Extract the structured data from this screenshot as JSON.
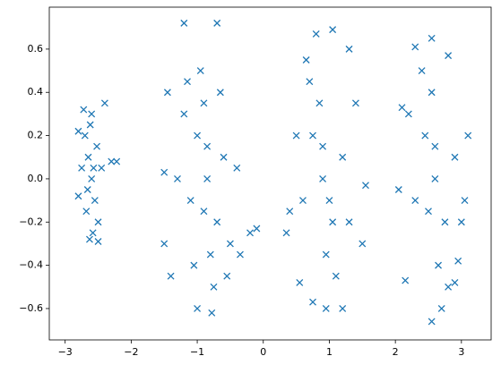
{
  "chart_data": {
    "type": "scatter",
    "color": "#1f77b4",
    "marker": "x",
    "xlim": [
      -3.24,
      3.45
    ],
    "ylim": [
      -0.745,
      0.794
    ],
    "xticks": [
      {
        "value": -3,
        "label": "−3"
      },
      {
        "value": -2,
        "label": "−2"
      },
      {
        "value": -1,
        "label": "−1"
      },
      0,
      1,
      2,
      3
    ],
    "yticks": [
      {
        "value": -0.6,
        "label": "−0.6"
      },
      {
        "value": -0.4,
        "label": "−0.4"
      },
      {
        "value": -0.2,
        "label": "−0.2"
      },
      {
        "value": 0,
        "label": "0.0"
      },
      0.2,
      0.4,
      0.6
    ],
    "x": [
      -2.6,
      -2.65,
      -2.55,
      -2.7,
      -2.5,
      -2.62,
      -2.58,
      -2.75,
      -2.45,
      -2.68,
      -2.52,
      -2.6,
      -2.63,
      -2.8,
      -2.3,
      -2.4,
      -2.8,
      -2.22,
      -2.5,
      -2.72,
      -2.57,
      -2.66,
      -0.85,
      -1.0,
      -0.7,
      -0.9,
      -0.8,
      -1.1,
      -0.6,
      -1.2,
      -0.5,
      -0.95,
      -0.75,
      -1.3,
      -0.4,
      -1.05,
      -0.65,
      -1.2,
      -0.7,
      -0.78,
      -1.0,
      -1.45,
      -1.5,
      -1.4,
      -0.2,
      -0.1,
      -0.35,
      -1.5,
      -0.85,
      -0.9,
      -1.15,
      -0.55,
      0.9,
      0.75,
      1.05,
      0.85,
      0.95,
      0.6,
      1.2,
      0.7,
      1.1,
      0.5,
      1.3,
      0.8,
      1.05,
      1.3,
      0.95,
      1.2,
      0.75,
      0.4,
      0.35,
      1.4,
      1.5,
      1.55,
      0.55,
      0.65,
      0.9,
      1.0,
      2.6,
      2.45,
      2.75,
      2.55,
      2.65,
      2.3,
      2.9,
      2.4,
      2.8,
      2.2,
      3.0,
      2.3,
      2.55,
      2.8,
      2.55,
      2.7,
      2.9,
      2.05,
      2.15,
      2.1,
      3.1,
      3.05,
      2.95,
      2.6,
      2.5
    ],
    "y": [
      0.0,
      0.1,
      -0.1,
      0.2,
      -0.2,
      0.25,
      -0.25,
      0.05,
      0.05,
      -0.15,
      0.15,
      0.3,
      -0.28,
      0.22,
      0.08,
      0.35,
      -0.08,
      0.08,
      -0.29,
      0.32,
      0.05,
      -0.05,
      0.0,
      0.2,
      -0.2,
      0.35,
      -0.35,
      -0.1,
      0.1,
      0.3,
      -0.3,
      0.5,
      -0.5,
      0.0,
      0.05,
      -0.4,
      0.4,
      0.72,
      0.72,
      -0.62,
      -0.6,
      0.4,
      -0.3,
      -0.45,
      -0.25,
      -0.23,
      -0.35,
      0.03,
      0.15,
      -0.15,
      0.45,
      -0.45,
      0.0,
      0.2,
      -0.2,
      0.35,
      -0.35,
      -0.1,
      0.1,
      0.45,
      -0.45,
      0.2,
      -0.2,
      0.67,
      0.69,
      0.6,
      -0.6,
      -0.6,
      -0.57,
      -0.15,
      -0.25,
      0.35,
      -0.3,
      -0.03,
      -0.48,
      0.55,
      0.15,
      -0.1,
      0.0,
      0.2,
      -0.2,
      0.4,
      -0.4,
      -0.1,
      0.1,
      0.5,
      -0.5,
      0.3,
      -0.2,
      0.61,
      0.65,
      0.57,
      -0.66,
      -0.6,
      -0.48,
      -0.05,
      -0.47,
      0.33,
      0.2,
      -0.1,
      -0.38,
      0.15,
      -0.15
    ]
  }
}
